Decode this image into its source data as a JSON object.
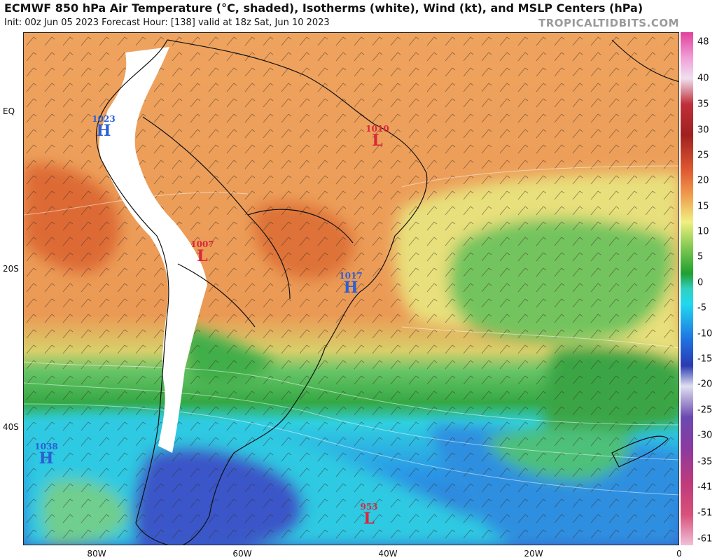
{
  "header": {
    "title": "ECMWF 850 hPa Air Temperature (°C, shaded), Isotherms (white), Wind (kt), and MSLP Centers (hPa)",
    "subtitle": "Init: 00z Jun 05 2023   Forecast Hour: [138]   valid at 18z Sat, Jun 10 2023",
    "brand": "TROPICALTIDBITS.COM"
  },
  "axes": {
    "lat_labels": [
      "EQ",
      "20S",
      "40S"
    ],
    "lon_labels": [
      "80W",
      "60W",
      "40W",
      "20W",
      "0"
    ]
  },
  "colorbar": {
    "labels": [
      "48",
      "40",
      "35",
      "30",
      "25",
      "20",
      "15",
      "10",
      "5",
      "0",
      "-5",
      "-10",
      "-15",
      "-20",
      "-25",
      "-30",
      "-35",
      "-41",
      "-51",
      "-61"
    ]
  },
  "pressure_centers": [
    {
      "type": "H",
      "value": "1023",
      "color": "#2a5fd6"
    },
    {
      "type": "L",
      "value": "1010",
      "color": "#d8283a"
    },
    {
      "type": "L",
      "value": "1007",
      "color": "#d8283a"
    },
    {
      "type": "H",
      "value": "1017",
      "color": "#2a5fd6"
    },
    {
      "type": "H",
      "value": "1038",
      "color": "#2a5fd6"
    },
    {
      "type": "L",
      "value": "953",
      "color": "#d8283a"
    }
  ],
  "colors": {
    "warm_orange": "#ec9a55",
    "hot_orange": "#dd6e36",
    "yellow": "#e6e27a",
    "green": "#5cbf5c",
    "dark_green": "#2f9a3a",
    "cyan": "#2fd6e6",
    "blue": "#2f7de0",
    "dark_blue": "#3552c4",
    "terrain_mask": "#ffffff"
  }
}
